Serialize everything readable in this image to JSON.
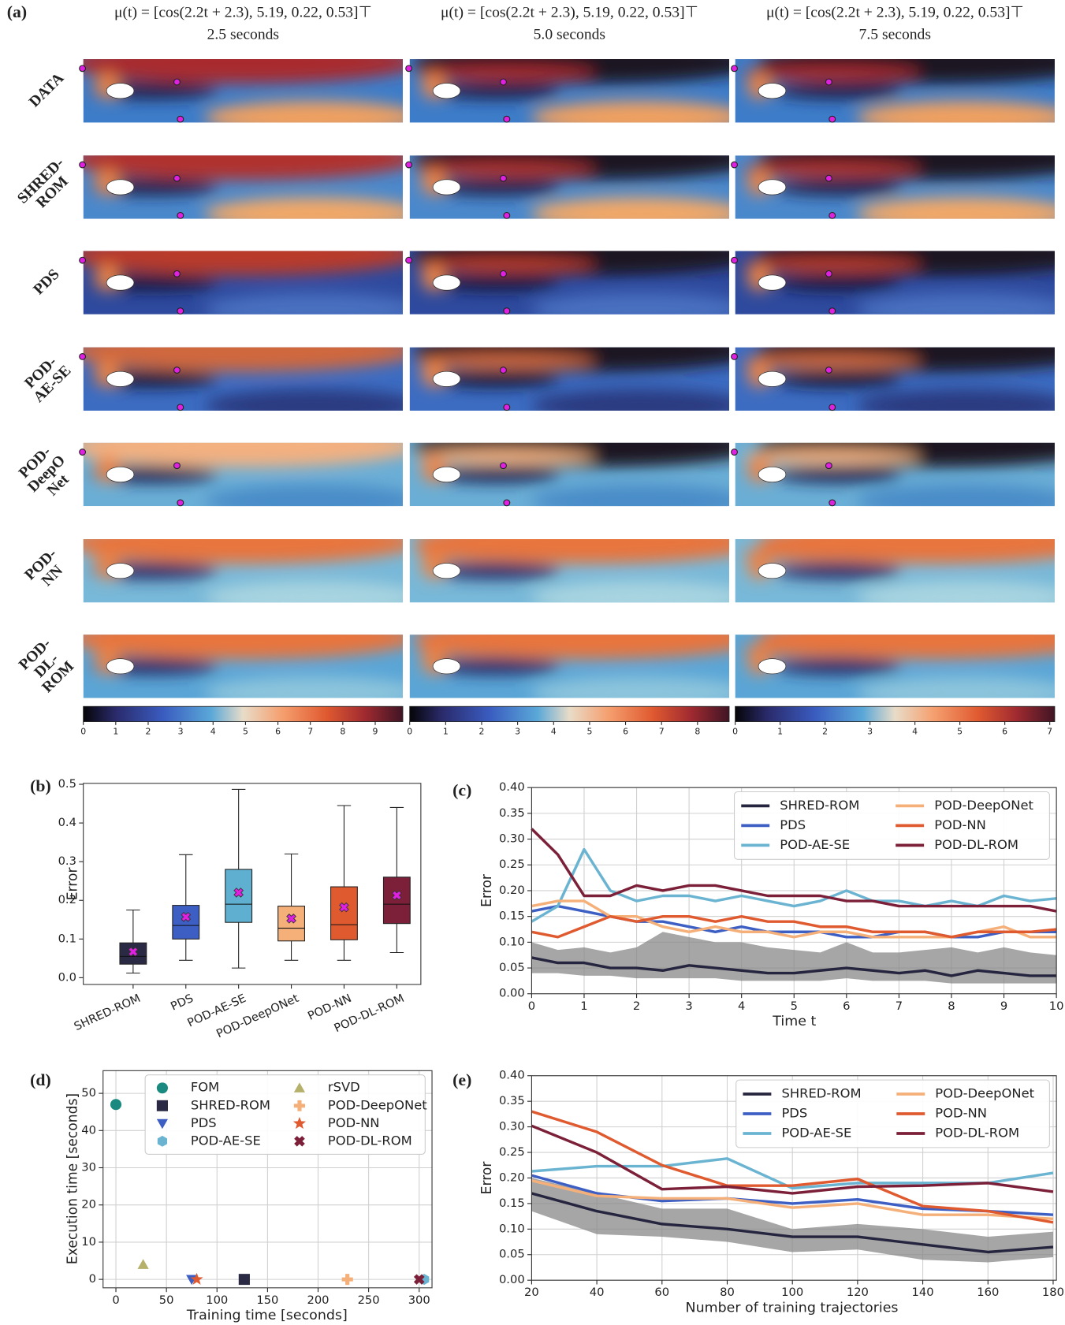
{
  "panel_a": {
    "panel_label": "(a)",
    "column_titles": [
      {
        "formula": "μ(t) = [cos(2.2t + 2.3), 5.19, 0.22, 0.53]⊤",
        "time": "2.5 seconds"
      },
      {
        "formula": "μ(t) = [cos(2.2t + 2.3), 5.19, 0.22, 0.53]⊤",
        "time": "5.0 seconds"
      },
      {
        "formula": "μ(t) = [cos(2.2t + 2.3), 5.19, 0.22, 0.53]⊤",
        "time": "7.5 seconds"
      }
    ],
    "row_labels": [
      [
        "DATA"
      ],
      [
        "SHRED-",
        "ROM"
      ],
      [
        "PDS"
      ],
      [
        "POD-",
        "AE-SE"
      ],
      [
        "POD-",
        "DeepO",
        "Net"
      ],
      [
        "POD-",
        "NN"
      ],
      [
        "POD-",
        "DL-",
        "ROM"
      ]
    ],
    "colorbars": [
      {
        "lim": [
          0,
          9.85
        ],
        "ticks": [
          0,
          1,
          2,
          3,
          4,
          5,
          6,
          7,
          8,
          9
        ]
      },
      {
        "lim": [
          0,
          8.88
        ],
        "ticks": [
          0,
          1,
          2,
          3,
          4,
          5,
          6,
          7,
          8
        ]
      },
      {
        "lim": [
          0,
          7.11
        ],
        "ticks": [
          0,
          1,
          2,
          3,
          4,
          5,
          6,
          7
        ]
      }
    ]
  },
  "chart_data": [
    {
      "type": "box",
      "panel_label": "(b)",
      "ylabel": "Error",
      "categories": [
        "SHRED-ROM",
        "PDS",
        "POD-AE-SE",
        "POD-DeepONet",
        "POD-NN",
        "POD-DL-ROM"
      ],
      "colors": [
        "#2b2a45",
        "#3d5fc4",
        "#5fb0d0",
        "#f5b07a",
        "#e05a30",
        "#7b2038"
      ],
      "whisker_low": [
        0.012,
        0.045,
        0.025,
        0.045,
        0.045,
        0.065
      ],
      "q1": [
        0.035,
        0.1,
        0.143,
        0.095,
        0.098,
        0.14
      ],
      "median": [
        0.055,
        0.135,
        0.19,
        0.128,
        0.137,
        0.19
      ],
      "q3": [
        0.09,
        0.187,
        0.28,
        0.185,
        0.235,
        0.26
      ],
      "whisker_high": [
        0.175,
        0.318,
        0.487,
        0.32,
        0.445,
        0.44
      ],
      "mean": [
        0.067,
        0.157,
        0.22,
        0.153,
        0.182,
        0.213
      ],
      "ylim": [
        -0.0175,
        0.5025
      ],
      "yticks": [
        {
          "value": 0,
          "label": "0.0"
        },
        0.1,
        0.2,
        0.3,
        0.4,
        0.5
      ],
      "grid": false
    },
    {
      "type": "line",
      "panel_label": "(c)",
      "xlabel": "Time t",
      "ylabel": "Error",
      "x": [
        0,
        0.5,
        1,
        1.5,
        2,
        2.5,
        3,
        3.5,
        4,
        4.5,
        5,
        5.5,
        6,
        6.5,
        7,
        7.5,
        8,
        8.5,
        9,
        9.5,
        10
      ],
      "band_color": "#888888",
      "series": [
        {
          "name": "SHRED-ROM",
          "color": "#26253f",
          "values": [
            0.07,
            0.06,
            0.06,
            0.05,
            0.05,
            0.045,
            0.055,
            0.05,
            0.045,
            0.04,
            0.04,
            0.045,
            0.05,
            0.045,
            0.04,
            0.045,
            0.035,
            0.045,
            0.04,
            0.035,
            0.035
          ],
          "band_lower": [
            0.04,
            0.04,
            0.035,
            0.035,
            0.03,
            0.03,
            0.03,
            0.03,
            0.025,
            0.025,
            0.025,
            0.025,
            0.03,
            0.025,
            0.025,
            0.025,
            0.02,
            0.02,
            0.02,
            0.02,
            0.02
          ],
          "band_upper": [
            0.1,
            0.085,
            0.09,
            0.08,
            0.09,
            0.12,
            0.11,
            0.1,
            0.1,
            0.09,
            0.085,
            0.08,
            0.1,
            0.08,
            0.08,
            0.085,
            0.09,
            0.08,
            0.09,
            0.08,
            0.075
          ]
        },
        {
          "name": "PDS",
          "color": "#3d5fc4",
          "values": [
            0.16,
            0.17,
            0.16,
            0.15,
            0.14,
            0.14,
            0.13,
            0.12,
            0.13,
            0.12,
            0.12,
            0.12,
            0.11,
            0.11,
            0.12,
            0.12,
            0.11,
            0.11,
            0.12,
            0.12,
            0.12
          ]
        },
        {
          "name": "POD-AE-SE",
          "color": "#6ab4d2",
          "values": [
            0.14,
            0.17,
            0.28,
            0.2,
            0.18,
            0.19,
            0.19,
            0.18,
            0.19,
            0.18,
            0.17,
            0.18,
            0.2,
            0.18,
            0.18,
            0.17,
            0.18,
            0.17,
            0.19,
            0.18,
            0.185
          ]
        },
        {
          "name": "POD-DeepONet",
          "color": "#f5b07a",
          "values": [
            0.17,
            0.18,
            0.18,
            0.15,
            0.15,
            0.13,
            0.12,
            0.13,
            0.12,
            0.12,
            0.11,
            0.12,
            0.12,
            0.11,
            0.11,
            0.11,
            0.11,
            0.12,
            0.13,
            0.11,
            0.11
          ]
        },
        {
          "name": "POD-NN",
          "color": "#e05a30",
          "values": [
            0.12,
            0.11,
            0.13,
            0.15,
            0.14,
            0.15,
            0.15,
            0.14,
            0.15,
            0.14,
            0.14,
            0.13,
            0.13,
            0.12,
            0.12,
            0.12,
            0.11,
            0.12,
            0.12,
            0.12,
            0.125
          ]
        },
        {
          "name": "POD-DL-ROM",
          "color": "#7b2038",
          "values": [
            0.32,
            0.27,
            0.19,
            0.19,
            0.21,
            0.2,
            0.21,
            0.21,
            0.2,
            0.19,
            0.19,
            0.19,
            0.18,
            0.18,
            0.17,
            0.17,
            0.17,
            0.17,
            0.17,
            0.17,
            0.16
          ]
        }
      ],
      "xlim": [
        0,
        10
      ],
      "xticks": [
        0,
        1,
        2,
        3,
        4,
        5,
        6,
        7,
        8,
        9,
        10
      ],
      "ylim": [
        0,
        0.4
      ],
      "yticks": [
        {
          "value": 0,
          "label": "0.00"
        },
        {
          "value": 0.05,
          "label": "0.05"
        },
        {
          "value": 0.1,
          "label": "0.10"
        },
        {
          "value": 0.15,
          "label": "0.15"
        },
        {
          "value": 0.2,
          "label": "0.20"
        },
        {
          "value": 0.25,
          "label": "0.25"
        },
        {
          "value": 0.3,
          "label": "0.30"
        },
        {
          "value": 0.35,
          "label": "0.35"
        },
        {
          "value": 0.4,
          "label": "0.40"
        }
      ],
      "grid": true,
      "legend": "upper right"
    },
    {
      "type": "scatter",
      "panel_label": "(d)",
      "xlabel": "Training time [seconds]",
      "ylabel": "Execution time [seconds]",
      "series": [
        {
          "name": "FOM",
          "color": "#1a8a80",
          "marker": "o",
          "x": [
            0
          ],
          "values": [
            47
          ]
        },
        {
          "name": "SHRED-ROM",
          "color": "#2b2a45",
          "marker": "s",
          "x": [
            127
          ],
          "values": [
            0
          ]
        },
        {
          "name": "PDS",
          "color": "#3d5fc4",
          "marker": "v",
          "x": [
            75
          ],
          "values": [
            0
          ]
        },
        {
          "name": "POD-AE-SE",
          "color": "#6ab4d2",
          "marker": "h",
          "x": [
            305
          ],
          "values": [
            0
          ]
        },
        {
          "name": "rSVD",
          "color": "#b5b06a",
          "marker": "^",
          "x": [
            27
          ],
          "values": [
            4
          ]
        },
        {
          "name": "POD-DeepONet",
          "color": "#f5b07a",
          "marker": "P",
          "x": [
            229
          ],
          "values": [
            0
          ]
        },
        {
          "name": "POD-NN",
          "color": "#e05a30",
          "marker": "*",
          "x": [
            80
          ],
          "values": [
            0
          ]
        },
        {
          "name": "POD-DL-ROM",
          "color": "#7b2038",
          "marker": "X",
          "x": [
            300
          ],
          "values": [
            0
          ]
        }
      ],
      "xlim": [
        -12.7,
        312.7
      ],
      "xticks": [
        0,
        50,
        100,
        150,
        200,
        250,
        300
      ],
      "ylim": [
        -2.27,
        56.1
      ],
      "yticks": [
        0,
        10,
        20,
        30,
        40,
        50
      ],
      "grid": true,
      "legend": "upper right"
    },
    {
      "type": "line",
      "panel_label": "(e)",
      "xlabel": "Number of training trajectories",
      "ylabel": "Error",
      "x": [
        20,
        40,
        60,
        80,
        100,
        120,
        140,
        160,
        180
      ],
      "band_color": "#888888",
      "series": [
        {
          "name": "SHRED-ROM",
          "color": "#26253f",
          "values": [
            0.17,
            0.135,
            0.11,
            0.1,
            0.085,
            0.085,
            0.07,
            0.055,
            0.065
          ],
          "band_lower": [
            0.135,
            0.09,
            0.085,
            0.075,
            0.055,
            0.06,
            0.04,
            0.035,
            0.045
          ],
          "band_upper": [
            0.2,
            0.17,
            0.14,
            0.14,
            0.1,
            0.11,
            0.1,
            0.085,
            0.095
          ]
        },
        {
          "name": "PDS",
          "color": "#3d5fc4",
          "values": [
            0.205,
            0.17,
            0.155,
            0.16,
            0.15,
            0.158,
            0.14,
            0.135,
            0.128
          ]
        },
        {
          "name": "POD-AE-SE",
          "color": "#6ab4d2",
          "values": [
            0.213,
            0.223,
            0.223,
            0.238,
            0.18,
            0.19,
            0.19,
            0.19,
            0.21
          ]
        },
        {
          "name": "POD-DeepONet",
          "color": "#f5b07a",
          "values": [
            0.195,
            0.165,
            0.16,
            0.16,
            0.142,
            0.15,
            0.128,
            0.128,
            0.12
          ]
        },
        {
          "name": "POD-NN",
          "color": "#e05a30",
          "values": [
            0.33,
            0.29,
            0.225,
            0.185,
            0.185,
            0.198,
            0.145,
            0.135,
            0.113
          ]
        },
        {
          "name": "POD-DL-ROM",
          "color": "#7b2038",
          "values": [
            0.302,
            0.25,
            0.178,
            0.183,
            0.17,
            0.183,
            0.185,
            0.19,
            0.173
          ]
        }
      ],
      "xlim": [
        20,
        181
      ],
      "xticks": [
        20,
        40,
        60,
        80,
        100,
        120,
        140,
        160,
        180
      ],
      "ylim": [
        0,
        0.4
      ],
      "yticks": [
        {
          "value": 0,
          "label": "0.00"
        },
        {
          "value": 0.05,
          "label": "0.05"
        },
        {
          "value": 0.1,
          "label": "0.10"
        },
        {
          "value": 0.15,
          "label": "0.15"
        },
        {
          "value": 0.2,
          "label": "0.20"
        },
        {
          "value": 0.25,
          "label": "0.25"
        },
        {
          "value": 0.3,
          "label": "0.30"
        },
        {
          "value": 0.35,
          "label": "0.35"
        },
        {
          "value": 0.4,
          "label": "0.40"
        }
      ],
      "grid": true,
      "legend": "upper right"
    }
  ]
}
